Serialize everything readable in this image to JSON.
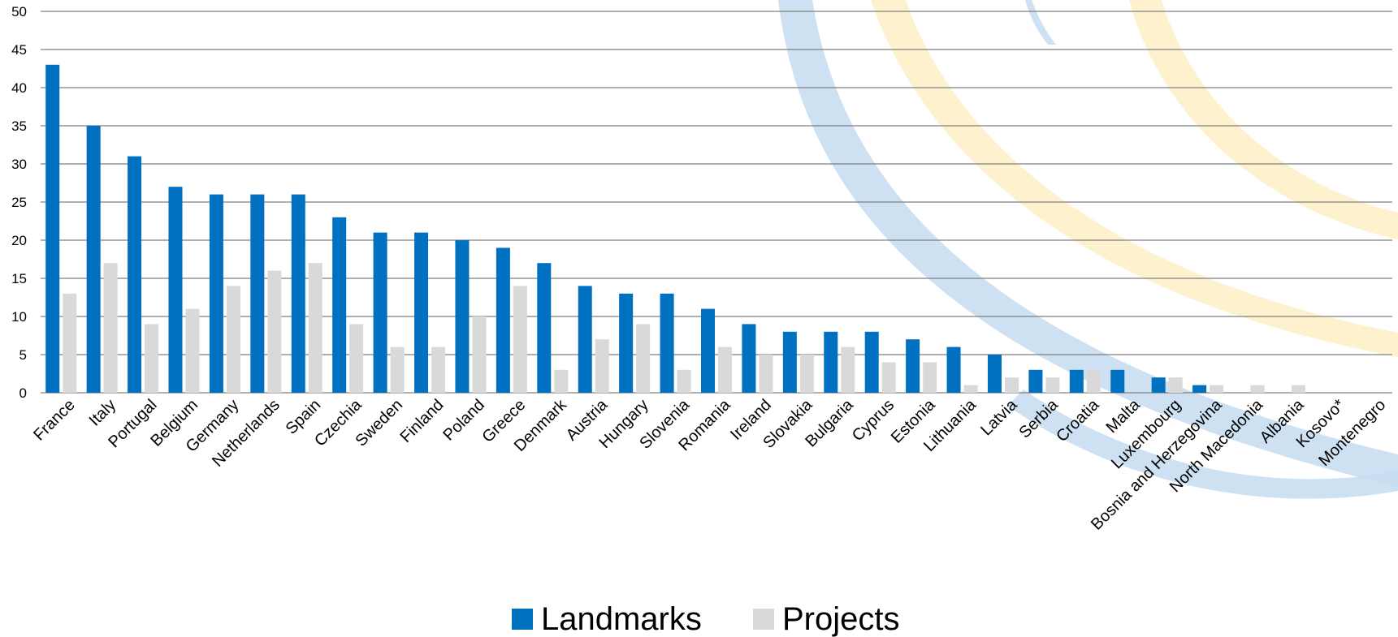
{
  "chart_data": {
    "type": "bar",
    "title": "",
    "xlabel": "",
    "ylabel": "",
    "ylim": [
      0,
      50
    ],
    "yticks": [
      0,
      5,
      10,
      15,
      20,
      25,
      30,
      35,
      40,
      45,
      50
    ],
    "grid": true,
    "legend_position": "bottom-center",
    "categories": [
      "France",
      "Italy",
      "Portugal",
      "Belgium",
      "Germany",
      "Netherlands",
      "Spain",
      "Czechia",
      "Sweden",
      "Finland",
      "Poland",
      "Greece",
      "Denmark",
      "Austria",
      "Hungary",
      "Slovenia",
      "Romania",
      "Ireland",
      "Slovakia",
      "Bulgaria",
      "Cyprus",
      "Estonia",
      "Lithuania",
      "Latvia",
      "Serbia",
      "Croatia",
      "Malta",
      "Luxembourg",
      "Bosnia and Herzegovina",
      "North Macedonia",
      "Albania",
      "Kosovo*",
      "Montenegro"
    ],
    "series": [
      {
        "name": "Landmarks",
        "color": "#0070c0",
        "values": [
          43,
          35,
          31,
          27,
          26,
          26,
          26,
          23,
          21,
          21,
          20,
          19,
          17,
          14,
          13,
          13,
          11,
          9,
          8,
          8,
          8,
          7,
          6,
          5,
          3,
          3,
          3,
          2,
          1,
          0,
          0,
          0,
          0
        ]
      },
      {
        "name": "Projects",
        "color": "#d9d9d9",
        "values": [
          13,
          17,
          9,
          11,
          14,
          16,
          17,
          9,
          6,
          6,
          10,
          14,
          3,
          7,
          9,
          3,
          6,
          5,
          5,
          6,
          4,
          4,
          1,
          2,
          2,
          3,
          0,
          2,
          1,
          1,
          1,
          0,
          0
        ]
      }
    ]
  },
  "decoration": {
    "arc_colors": [
      "#c6dcf0",
      "#fdefc6"
    ]
  }
}
